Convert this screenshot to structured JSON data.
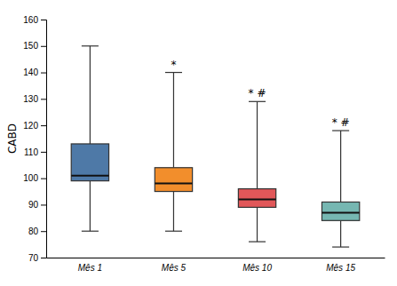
{
  "chart_data": {
    "type": "box",
    "categories": [
      "Mês 1",
      "Mês 5",
      "Mês 10",
      "Mês 15"
    ],
    "boxes": [
      {
        "whisker_low": 80,
        "q1": 99,
        "median": 101,
        "q3": 113,
        "whisker_high": 150
      },
      {
        "whisker_low": 80,
        "q1": 95,
        "median": 98,
        "q3": 104,
        "whisker_high": 140
      },
      {
        "whisker_low": 76,
        "q1": 89,
        "median": 92,
        "q3": 96,
        "whisker_high": 129
      },
      {
        "whisker_low": 74,
        "q1": 84,
        "median": 87,
        "q3": 91,
        "whisker_high": 118
      }
    ],
    "annotations": [
      null,
      "*",
      "* #",
      "* #"
    ],
    "ylabel": "CABD",
    "ylim": [
      70,
      160
    ],
    "yticks": [
      70,
      80,
      90,
      100,
      110,
      120,
      130,
      140,
      150,
      160
    ],
    "grid": false
  }
}
